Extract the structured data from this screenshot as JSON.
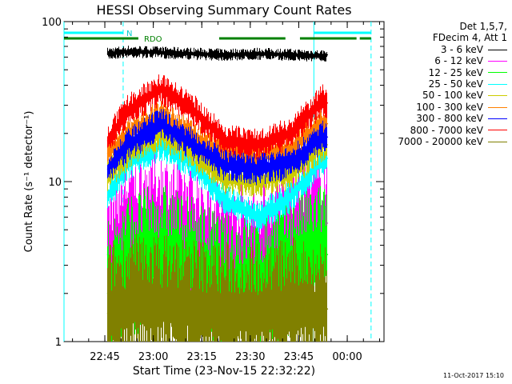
{
  "chart_data": {
    "type": "line",
    "title": "HESSI Observing Summary Count Rates",
    "xlabel": "Start Time (23-Nov-15 22:32:22)",
    "ylabel": "Count Rate (s⁻¹ detector⁻¹)",
    "yscale": "log",
    "ylim": [
      1,
      100
    ],
    "xlim_minutes_after_start": [
      0,
      99
    ],
    "xtick_labels": [
      "22:45",
      "23:00",
      "23:15",
      "23:30",
      "23:45",
      "00:00"
    ],
    "ytick_labels": [
      "1",
      "10",
      "100"
    ],
    "grid": false,
    "legend_header": [
      "Det 1,5,7,",
      "FDecim 4, Att 1"
    ],
    "legend_placement": "right",
    "series": [
      {
        "name": "3 - 6 keV",
        "color": "#000000",
        "x": [
          13.5,
          20,
          30,
          40,
          50,
          60,
          70,
          80,
          81.5
        ],
        "values": [
          63,
          65,
          64,
          63,
          62,
          63,
          62,
          61,
          62
        ]
      },
      {
        "name": "6 - 12 keV",
        "color": "#ff00ff",
        "x": [
          13.5,
          20,
          30,
          40,
          50,
          60,
          70,
          80,
          81.5
        ],
        "values": [
          3.5,
          5,
          5.5,
          4.5,
          3.5,
          3.5,
          4.5,
          5.5,
          5.5
        ]
      },
      {
        "name": "12 - 25 keV",
        "color": "#00ff00",
        "x": [
          13.5,
          20,
          30,
          40,
          50,
          60,
          70,
          80,
          81.5
        ],
        "values": [
          2.0,
          3.0,
          3.5,
          2.8,
          2.2,
          2.2,
          3.0,
          3.5,
          3.5
        ]
      },
      {
        "name": "25 - 50 keV",
        "color": "#00ffff",
        "x": [
          13.5,
          20,
          30,
          40,
          50,
          60,
          70,
          80,
          81.5
        ],
        "values": [
          8,
          13,
          17,
          13,
          7.5,
          6,
          8,
          14,
          14
        ]
      },
      {
        "name": "50 - 100 keV",
        "color": "#cccc00",
        "x": [
          13.5,
          20,
          30,
          40,
          50,
          60,
          70,
          80,
          81.5
        ],
        "values": [
          11,
          15,
          20,
          15,
          10.5,
          10,
          11,
          17,
          17
        ]
      },
      {
        "name": "100 - 300 keV",
        "color": "#ff8000",
        "x": [
          13.5,
          20,
          30,
          40,
          50,
          60,
          70,
          80,
          81.5
        ],
        "values": [
          15,
          20,
          26,
          19,
          15,
          14,
          16,
          23,
          23
        ]
      },
      {
        "name": "300 - 800 keV",
        "color": "#0000ff",
        "x": [
          13.5,
          20,
          30,
          40,
          50,
          60,
          70,
          80,
          81.5
        ],
        "values": [
          12,
          17,
          23,
          17,
          12.5,
          12,
          13,
          19,
          19
        ]
      },
      {
        "name": "800 - 7000 keV",
        "color": "#ff0000",
        "x": [
          13.5,
          20,
          30,
          40,
          50,
          60,
          70,
          80,
          81.5
        ],
        "values": [
          18,
          28,
          38,
          28,
          18,
          17,
          20,
          32,
          31
        ]
      },
      {
        "name": "7000 - 20000 keV",
        "color": "#808000",
        "x": [
          13.5,
          20,
          30,
          40,
          50,
          60,
          70,
          80,
          81.5
        ],
        "values": [
          1.5,
          1.7,
          1.7,
          1.6,
          1.5,
          1.5,
          1.6,
          1.6,
          1.6
        ]
      }
    ],
    "annotations": {
      "n_label": "N",
      "rdo_label": "RDO",
      "night_intervals": [
        [
          0,
          18.3
        ],
        [
          77.3,
          95
        ]
      ],
      "saa_intervals": [
        [
          0,
          23
        ],
        [
          48,
          68.5
        ],
        [
          73,
          90.5
        ],
        [
          91.5,
          95
        ]
      ],
      "vertical_lines_solid": [
        0,
        77.3
      ],
      "vertical_lines_dashed": [
        18.3,
        95
      ]
    },
    "footer_stamp": "11-Oct-2017 15:10"
  }
}
